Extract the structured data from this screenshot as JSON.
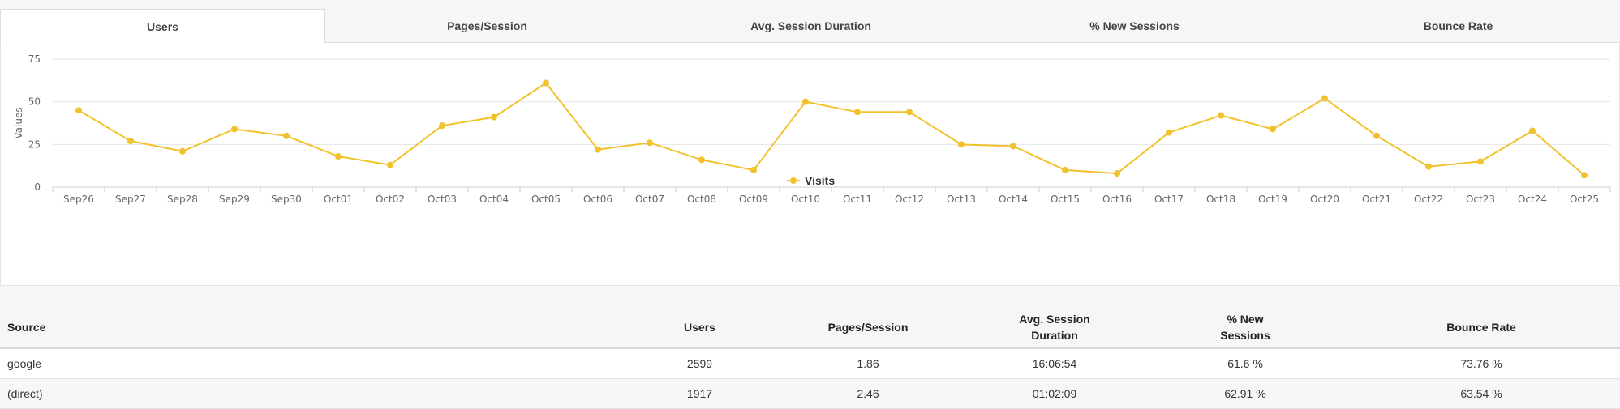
{
  "tabs": [
    {
      "label": "Users",
      "active": true
    },
    {
      "label": "Pages/Session",
      "active": false
    },
    {
      "label": "Avg. Session Duration",
      "active": false
    },
    {
      "label": "% New Sessions",
      "active": false
    },
    {
      "label": "Bounce Rate",
      "active": false
    }
  ],
  "chart_data": {
    "type": "line",
    "ylabel": "Values",
    "xlabel": "",
    "ylim": [
      0,
      75
    ],
    "yticks": [
      0,
      25,
      50,
      75
    ],
    "grid": true,
    "legend_position": "bottom",
    "categories": [
      "Sep26",
      "Sep27",
      "Sep28",
      "Sep29",
      "Sep30",
      "Oct01",
      "Oct02",
      "Oct03",
      "Oct04",
      "Oct05",
      "Oct06",
      "Oct07",
      "Oct08",
      "Oct09",
      "Oct10",
      "Oct11",
      "Oct12",
      "Oct13",
      "Oct14",
      "Oct15",
      "Oct16",
      "Oct17",
      "Oct18",
      "Oct19",
      "Oct20",
      "Oct21",
      "Oct22",
      "Oct23",
      "Oct24",
      "Oct25"
    ],
    "series": [
      {
        "name": "Visits",
        "color": "#f2c22c",
        "values": [
          45,
          27,
          21,
          34,
          30,
          18,
          13,
          36,
          41,
          61,
          22,
          26,
          16,
          10,
          50,
          44,
          44,
          25,
          24,
          10,
          8,
          32,
          42,
          34,
          52,
          30,
          12,
          15,
          33,
          7
        ]
      }
    ]
  },
  "table": {
    "headers": [
      {
        "key": "src",
        "label": "Source",
        "lines": [
          "Source"
        ]
      },
      {
        "key": "users",
        "label": "Users",
        "lines": [
          "Users"
        ]
      },
      {
        "key": "pps",
        "label": "Pages/Session",
        "lines": [
          "Pages/Session"
        ]
      },
      {
        "key": "dur",
        "label": "Avg. Session Duration",
        "lines": [
          "Avg. Session",
          "Duration"
        ]
      },
      {
        "key": "new",
        "label": "% New Sessions",
        "lines": [
          "% New",
          "Sessions"
        ]
      },
      {
        "key": "bounce",
        "label": "Bounce Rate",
        "lines": [
          "Bounce Rate"
        ]
      }
    ],
    "rows": [
      [
        "google",
        "2599",
        "1.86",
        "16:06:54",
        "61.6 %",
        "73.76 %"
      ],
      [
        "(direct)",
        "1917",
        "2.46",
        "01:02:09",
        "62.91 %",
        "63.54 %"
      ]
    ]
  }
}
